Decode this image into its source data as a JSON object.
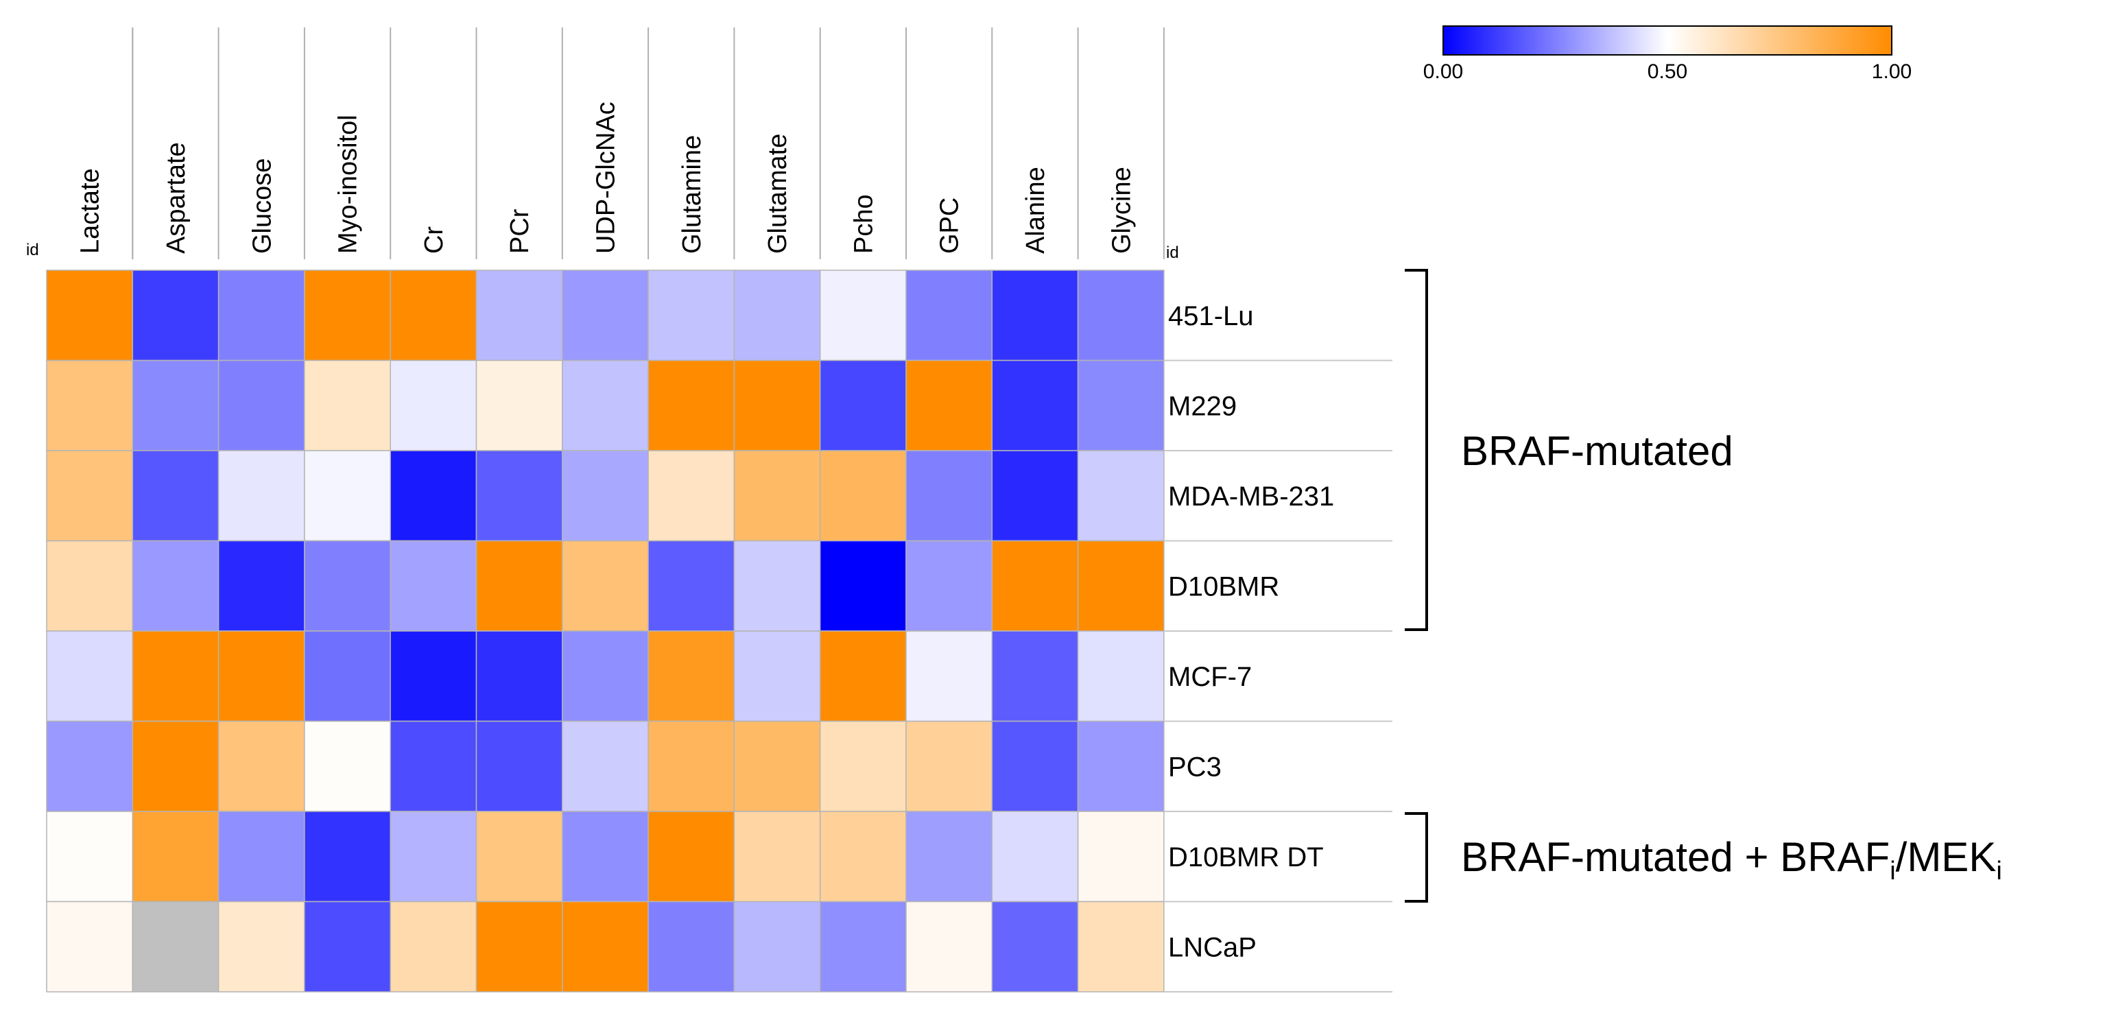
{
  "chart_data": {
    "type": "heatmap",
    "id_label": "id",
    "columns": [
      "Lactate",
      "Aspartate",
      "Glucose",
      "Myo-inositol",
      "Cr",
      "PCr",
      "UDP-GlcNAc",
      "Glutamine",
      "Glutamate",
      "Pcho",
      "GPC",
      "Alanine",
      "Glycine"
    ],
    "rows": [
      "451-Lu",
      "M229",
      "MDA-MB-231",
      "D10BMR",
      "MCF-7",
      "PC3",
      "D10BMR DT",
      "LNCaP"
    ],
    "values": [
      [
        1.0,
        0.12,
        0.25,
        1.0,
        1.0,
        0.36,
        0.3,
        0.38,
        0.36,
        0.47,
        0.25,
        0.1,
        0.25
      ],
      [
        0.76,
        0.27,
        0.25,
        0.61,
        0.46,
        0.56,
        0.38,
        1.0,
        1.0,
        0.14,
        1.0,
        0.1,
        0.27
      ],
      [
        0.76,
        0.17,
        0.45,
        0.48,
        0.05,
        0.18,
        0.33,
        0.62,
        0.8,
        0.82,
        0.25,
        0.08,
        0.4
      ],
      [
        0.66,
        0.3,
        0.08,
        0.25,
        0.32,
        1.0,
        0.77,
        0.18,
        0.4,
        0.0,
        0.3,
        1.0,
        1.0
      ],
      [
        0.43,
        1.0,
        1.0,
        0.22,
        0.05,
        0.09,
        0.28,
        0.94,
        0.4,
        1.0,
        0.47,
        0.18,
        0.44
      ],
      [
        0.3,
        1.0,
        0.76,
        0.51,
        0.15,
        0.15,
        0.4,
        0.82,
        0.8,
        0.64,
        0.7,
        0.17,
        0.3
      ],
      [
        0.51,
        0.9,
        0.28,
        0.1,
        0.35,
        0.75,
        0.28,
        1.0,
        0.68,
        0.7,
        0.31,
        0.43,
        0.53
      ],
      [
        0.53,
        null,
        0.6,
        0.15,
        0.66,
        1.0,
        1.0,
        0.25,
        0.36,
        0.28,
        0.53,
        0.2,
        0.64
      ]
    ],
    "missing_color": "#c0c0c0",
    "colorscale": {
      "min": 0.0,
      "mid": 0.5,
      "max": 1.0,
      "colors": [
        "#0000ff",
        "#ffffff",
        "#ff8c00"
      ],
      "tick_labels": [
        "0.00",
        "0.50",
        "1.00"
      ]
    },
    "groups": [
      {
        "label": "BRAF-mutated",
        "rows": [
          "451-Lu",
          "M229",
          "MDA-MB-231",
          "D10BMR"
        ]
      },
      {
        "label_main": "BRAF-mutated + BRAF",
        "sub1": "i",
        "label_mid": "/MEK",
        "sub2": "i",
        "rows": [
          "D10BMR DT"
        ]
      }
    ]
  }
}
